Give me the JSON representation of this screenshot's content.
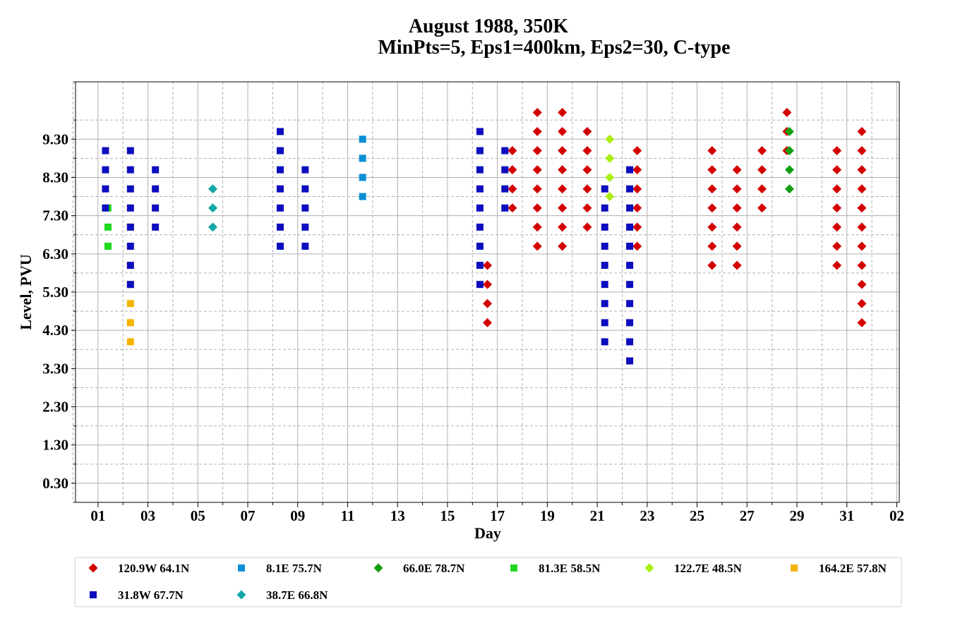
{
  "chart_data": {
    "type": "scatter",
    "title": "August 1988, 350K",
    "subtitle": "MinPts=5, Eps1=400km, Eps2=30, C-type",
    "xlabel": "Day",
    "ylabel": "Level, PVU",
    "x_ticks": [
      "01",
      "03",
      "05",
      "07",
      "09",
      "11",
      "13",
      "15",
      "17",
      "19",
      "21",
      "23",
      "25",
      "27",
      "29",
      "31",
      "02"
    ],
    "y_ticks": [
      "0.30",
      "1.30",
      "2.30",
      "3.30",
      "4.30",
      "5.30",
      "6.30",
      "7.30",
      "8.30",
      "9.30"
    ],
    "xlim": [
      0.1,
      33.1
    ],
    "ylim": [
      -0.2,
      10.8
    ],
    "grid": true,
    "legend_position": "bottom",
    "series": [
      {
        "name": "120.9W 64.1N",
        "color": "#d40000",
        "marker": "diamond",
        "points": [
          [
            17.6,
            9.0
          ],
          [
            17.6,
            8.5
          ],
          [
            17.6,
            8.0
          ],
          [
            17.6,
            7.5
          ],
          [
            16.6,
            6.0
          ],
          [
            16.6,
            5.5
          ],
          [
            16.6,
            5.0
          ],
          [
            16.6,
            4.5
          ],
          [
            18.6,
            10.0
          ],
          [
            18.6,
            9.5
          ],
          [
            18.6,
            9.0
          ],
          [
            18.6,
            8.5
          ],
          [
            18.6,
            8.0
          ],
          [
            18.6,
            7.5
          ],
          [
            18.6,
            7.0
          ],
          [
            18.6,
            6.5
          ],
          [
            19.6,
            10.0
          ],
          [
            19.6,
            9.5
          ],
          [
            19.6,
            9.0
          ],
          [
            19.6,
            8.5
          ],
          [
            19.6,
            8.0
          ],
          [
            19.6,
            7.5
          ],
          [
            19.6,
            7.0
          ],
          [
            19.6,
            6.5
          ],
          [
            20.6,
            9.5
          ],
          [
            20.6,
            9.0
          ],
          [
            20.6,
            8.5
          ],
          [
            20.6,
            8.0
          ],
          [
            20.6,
            7.5
          ],
          [
            20.6,
            7.0
          ],
          [
            22.6,
            9.0
          ],
          [
            22.6,
            8.5
          ],
          [
            22.6,
            8.0
          ],
          [
            22.6,
            7.5
          ],
          [
            22.6,
            7.0
          ],
          [
            22.6,
            6.5
          ],
          [
            25.6,
            9.0
          ],
          [
            25.6,
            8.5
          ],
          [
            25.6,
            8.0
          ],
          [
            25.6,
            7.5
          ],
          [
            25.6,
            7.0
          ],
          [
            25.6,
            6.5
          ],
          [
            25.6,
            6.0
          ],
          [
            26.6,
            8.5
          ],
          [
            26.6,
            8.0
          ],
          [
            26.6,
            7.5
          ],
          [
            26.6,
            7.0
          ],
          [
            26.6,
            6.5
          ],
          [
            26.6,
            6.0
          ],
          [
            27.6,
            9.0
          ],
          [
            27.6,
            8.5
          ],
          [
            27.6,
            8.0
          ],
          [
            27.6,
            7.5
          ],
          [
            28.6,
            10.0
          ],
          [
            28.6,
            9.5
          ],
          [
            28.6,
            9.0
          ],
          [
            30.6,
            9.0
          ],
          [
            30.6,
            8.5
          ],
          [
            30.6,
            8.0
          ],
          [
            30.6,
            7.5
          ],
          [
            30.6,
            7.0
          ],
          [
            30.6,
            6.5
          ],
          [
            30.6,
            6.0
          ],
          [
            31.6,
            9.5
          ],
          [
            31.6,
            9.0
          ],
          [
            31.6,
            8.5
          ],
          [
            31.6,
            8.0
          ],
          [
            31.6,
            7.5
          ],
          [
            31.6,
            7.0
          ],
          [
            31.6,
            6.5
          ],
          [
            31.6,
            6.0
          ],
          [
            31.6,
            5.5
          ],
          [
            31.6,
            5.0
          ],
          [
            31.6,
            4.5
          ]
        ]
      },
      {
        "name": "8.1E 75.7N",
        "color": "#0a8fd6",
        "marker": "square",
        "points": [
          [
            11.6,
            9.3
          ],
          [
            11.6,
            8.8
          ],
          [
            11.6,
            8.3
          ],
          [
            11.6,
            7.8
          ]
        ]
      },
      {
        "name": "66.0E 78.7N",
        "color": "#11a011",
        "marker": "diamond",
        "points": [
          [
            28.7,
            9.5
          ],
          [
            28.7,
            9.0
          ],
          [
            28.7,
            8.5
          ],
          [
            28.7,
            8.0
          ]
        ]
      },
      {
        "name": "81.3E 58.5N",
        "color": "#1ed81e",
        "marker": "square",
        "points": [
          [
            1.4,
            7.5
          ],
          [
            1.4,
            7.0
          ],
          [
            1.4,
            6.5
          ]
        ]
      },
      {
        "name": "122.7E 48.5N",
        "color": "#aaee11",
        "marker": "diamond",
        "points": [
          [
            21.5,
            9.3
          ],
          [
            21.5,
            8.8
          ],
          [
            21.5,
            8.3
          ],
          [
            21.5,
            7.8
          ]
        ]
      },
      {
        "name": "164.2E 57.8N",
        "color": "#f5b400",
        "marker": "square",
        "points": [
          [
            2.3,
            7.0
          ],
          [
            2.3,
            6.0
          ],
          [
            2.3,
            5.5
          ],
          [
            2.3,
            5.0
          ],
          [
            2.3,
            4.5
          ],
          [
            2.3,
            4.0
          ]
        ]
      },
      {
        "name": "31.8W 67.7N",
        "color": "#0d0dbf",
        "marker": "square",
        "points": [
          [
            1.3,
            9.0
          ],
          [
            1.3,
            8.5
          ],
          [
            1.3,
            8.0
          ],
          [
            1.3,
            7.5
          ],
          [
            2.3,
            9.0
          ],
          [
            2.3,
            8.5
          ],
          [
            2.3,
            8.0
          ],
          [
            2.3,
            7.5
          ],
          [
            2.3,
            7.0
          ],
          [
            2.3,
            6.5
          ],
          [
            2.3,
            6.0
          ],
          [
            2.3,
            5.5
          ],
          [
            3.3,
            8.5
          ],
          [
            3.3,
            8.0
          ],
          [
            3.3,
            7.5
          ],
          [
            3.3,
            7.0
          ],
          [
            8.3,
            9.5
          ],
          [
            8.3,
            9.0
          ],
          [
            8.3,
            8.5
          ],
          [
            8.3,
            8.0
          ],
          [
            8.3,
            7.5
          ],
          [
            8.3,
            7.0
          ],
          [
            8.3,
            6.5
          ],
          [
            9.3,
            8.5
          ],
          [
            9.3,
            8.0
          ],
          [
            9.3,
            7.5
          ],
          [
            9.3,
            7.0
          ],
          [
            9.3,
            6.5
          ],
          [
            16.3,
            9.5
          ],
          [
            16.3,
            9.0
          ],
          [
            16.3,
            8.5
          ],
          [
            16.3,
            8.0
          ],
          [
            16.3,
            7.5
          ],
          [
            16.3,
            7.0
          ],
          [
            16.3,
            6.5
          ],
          [
            16.3,
            6.0
          ],
          [
            16.3,
            5.5
          ],
          [
            17.3,
            9.0
          ],
          [
            17.3,
            8.5
          ],
          [
            17.3,
            8.0
          ],
          [
            17.3,
            7.5
          ],
          [
            21.3,
            8.0
          ],
          [
            21.3,
            7.5
          ],
          [
            21.3,
            7.0
          ],
          [
            21.3,
            6.5
          ],
          [
            21.3,
            6.0
          ],
          [
            21.3,
            5.5
          ],
          [
            21.3,
            5.0
          ],
          [
            21.3,
            4.5
          ],
          [
            21.3,
            4.0
          ],
          [
            22.3,
            8.5
          ],
          [
            22.3,
            8.0
          ],
          [
            22.3,
            7.5
          ],
          [
            22.3,
            7.0
          ],
          [
            22.3,
            6.5
          ],
          [
            22.3,
            6.0
          ],
          [
            22.3,
            5.5
          ],
          [
            22.3,
            5.0
          ],
          [
            22.3,
            4.5
          ],
          [
            22.3,
            4.0
          ],
          [
            22.3,
            3.5
          ]
        ]
      },
      {
        "name": "38.7E 66.8N",
        "color": "#13a7a7",
        "marker": "diamond",
        "points": [
          [
            5.6,
            8.0
          ],
          [
            5.6,
            7.5
          ],
          [
            5.6,
            7.0
          ]
        ]
      }
    ]
  }
}
